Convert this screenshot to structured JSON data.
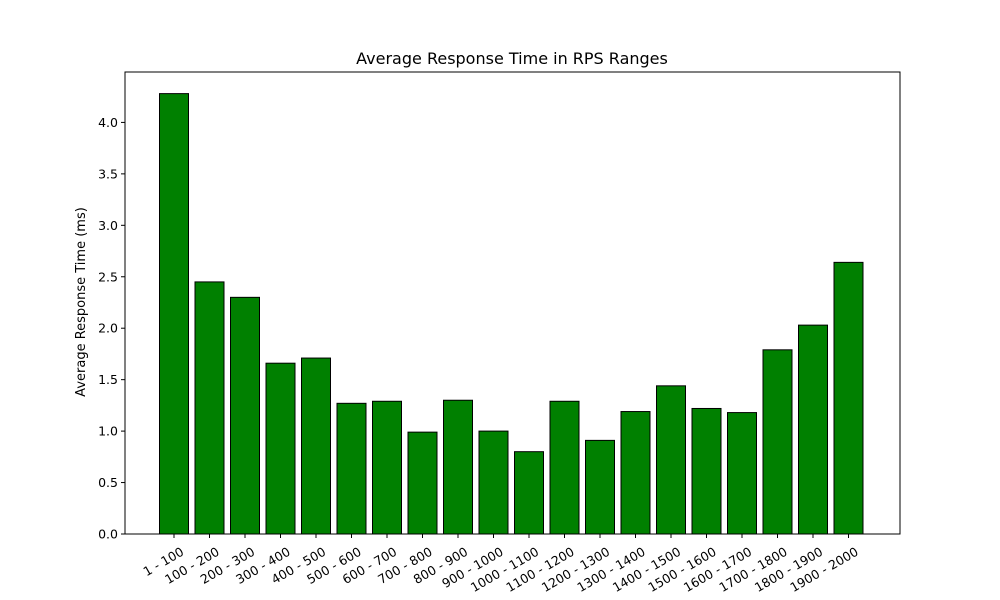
{
  "chart_data": {
    "type": "bar",
    "title": "Average Response Time in RPS Ranges",
    "xlabel": "",
    "ylabel": "Average Response Time (ms)",
    "categories": [
      "1 - 100",
      "100 - 200",
      "200 - 300",
      "300 - 400",
      "400 - 500",
      "500 - 600",
      "600 - 700",
      "700 - 800",
      "800 - 900",
      "900 - 1000",
      "1000 - 1100",
      "1100 - 1200",
      "1200 - 1300",
      "1300 - 1400",
      "1400 - 1500",
      "1500 - 1600",
      "1600 - 1700",
      "1700 - 1800",
      "1800 - 1900",
      "1900 - 2000"
    ],
    "values": [
      4.28,
      2.45,
      2.3,
      1.66,
      1.71,
      1.27,
      1.29,
      0.99,
      1.3,
      1.0,
      0.8,
      1.29,
      0.91,
      1.19,
      1.44,
      1.22,
      1.18,
      1.79,
      2.03,
      2.64
    ],
    "yticks": [
      "0.0",
      "0.5",
      "1.0",
      "1.5",
      "2.0",
      "2.5",
      "3.0",
      "3.5",
      "4.0"
    ],
    "ylim": [
      0,
      4.49
    ],
    "grid": false,
    "colors": {
      "bar_fill": "#008000",
      "bar_edge": "#000000"
    }
  }
}
